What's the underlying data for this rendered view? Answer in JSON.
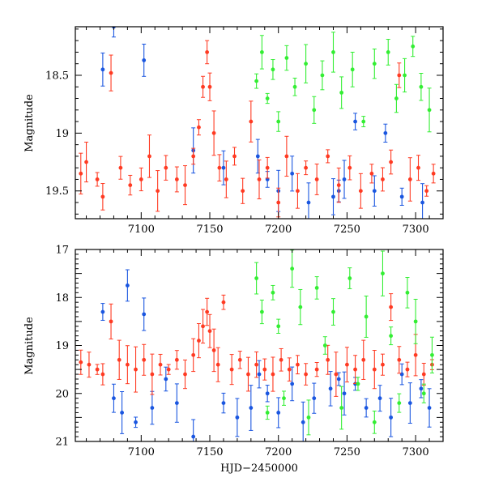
{
  "chart_data": [
    {
      "type": "scatter",
      "panel": "top",
      "xlabel": "",
      "ylabel": "Magnitude",
      "xlim": [
        7052,
        7320
      ],
      "ylim": [
        19.74,
        18.08
      ],
      "y_inverted": true,
      "x_ticks": [
        7100,
        7150,
        7200,
        7250,
        7300
      ],
      "x_tick_labels": [
        "7100",
        "7150",
        "7200",
        "7250",
        "7300"
      ],
      "y_ticks": [
        18.5,
        19,
        19.5
      ],
      "y_tick_labels": [
        "18.5",
        "19",
        "19.5"
      ],
      "series": [
        {
          "name": "blue",
          "color": "#1a56e0",
          "points": [
            [
              7072,
              18.45
            ],
            [
              7080,
              18.08
            ],
            [
              7102,
              18.37
            ],
            [
              7138,
              19.15
            ],
            [
              7160,
              19.3
            ],
            [
              7185,
              19.2
            ],
            [
              7192,
              19.4
            ],
            [
              7200,
              19.5
            ],
            [
              7210,
              19.35
            ],
            [
              7222,
              19.6
            ],
            [
              7240,
              19.55
            ],
            [
              7244,
              19.5
            ],
            [
              7248,
              19.4
            ],
            [
              7256,
              18.9
            ],
            [
              7270,
              19.5
            ],
            [
              7278,
              19.0
            ],
            [
              7290,
              19.55
            ],
            [
              7305,
              19.6
            ]
          ]
        },
        {
          "name": "red",
          "color": "#ff3a22",
          "points": [
            [
              7056,
              19.35
            ],
            [
              7060,
              19.25
            ],
            [
              7068,
              19.4
            ],
            [
              7072,
              19.55
            ],
            [
              7078,
              18.48
            ],
            [
              7085,
              19.3
            ],
            [
              7092,
              19.45
            ],
            [
              7100,
              19.4
            ],
            [
              7106,
              19.2
            ],
            [
              7112,
              19.5
            ],
            [
              7118,
              19.3
            ],
            [
              7126,
              19.4
            ],
            [
              7132,
              19.45
            ],
            [
              7138,
              19.2
            ],
            [
              7142,
              18.95
            ],
            [
              7145,
              18.6
            ],
            [
              7148,
              18.3
            ],
            [
              7150,
              18.6
            ],
            [
              7153,
              19.0
            ],
            [
              7157,
              19.3
            ],
            [
              7162,
              19.4
            ],
            [
              7168,
              19.2
            ],
            [
              7174,
              19.5
            ],
            [
              7180,
              18.9
            ],
            [
              7186,
              19.4
            ],
            [
              7192,
              19.3
            ],
            [
              7200,
              19.6
            ],
            [
              7206,
              19.2
            ],
            [
              7214,
              19.5
            ],
            [
              7220,
              19.3
            ],
            [
              7228,
              19.4
            ],
            [
              7236,
              19.2
            ],
            [
              7244,
              19.45
            ],
            [
              7252,
              19.3
            ],
            [
              7260,
              19.5
            ],
            [
              7268,
              19.35
            ],
            [
              7276,
              19.4
            ],
            [
              7282,
              19.25
            ],
            [
              7288,
              18.5
            ],
            [
              7296,
              19.4
            ],
            [
              7302,
              19.3
            ],
            [
              7308,
              19.5
            ],
            [
              7313,
              19.35
            ]
          ]
        },
        {
          "name": "green",
          "color": "#33ee33",
          "points": [
            [
              7184,
              18.55
            ],
            [
              7188,
              18.3
            ],
            [
              7192,
              18.7
            ],
            [
              7196,
              18.45
            ],
            [
              7200,
              18.9
            ],
            [
              7206,
              18.35
            ],
            [
              7212,
              18.6
            ],
            [
              7220,
              18.4
            ],
            [
              7226,
              18.8
            ],
            [
              7232,
              18.5
            ],
            [
              7240,
              18.3
            ],
            [
              7246,
              18.65
            ],
            [
              7254,
              18.45
            ],
            [
              7262,
              18.9
            ],
            [
              7270,
              18.4
            ],
            [
              7280,
              18.3
            ],
            [
              7286,
              18.7
            ],
            [
              7292,
              18.5
            ],
            [
              7298,
              18.25
            ],
            [
              7304,
              18.6
            ],
            [
              7310,
              18.8
            ]
          ]
        }
      ]
    },
    {
      "type": "scatter",
      "panel": "bottom",
      "xlabel": "HJD−2450000",
      "ylabel": "Magnitude",
      "xlim": [
        7052,
        7320
      ],
      "ylim": [
        21,
        17
      ],
      "y_inverted": true,
      "x_ticks": [
        7100,
        7150,
        7200,
        7250,
        7300
      ],
      "x_tick_labels": [
        "7100",
        "7150",
        "7200",
        "7250",
        "7300"
      ],
      "y_ticks": [
        17,
        18,
        19,
        20,
        21
      ],
      "y_tick_labels": [
        "17",
        "18",
        "19",
        "20",
        "21"
      ],
      "series": [
        {
          "name": "blue",
          "color": "#1a56e0",
          "points": [
            [
              7072,
              18.3
            ],
            [
              7080,
              20.1
            ],
            [
              7086,
              20.4
            ],
            [
              7090,
              17.75
            ],
            [
              7096,
              20.6
            ],
            [
              7102,
              18.35
            ],
            [
              7108,
              20.3
            ],
            [
              7118,
              19.7
            ],
            [
              7126,
              20.2
            ],
            [
              7138,
              20.9
            ],
            [
              7160,
              20.2
            ],
            [
              7170,
              20.5
            ],
            [
              7180,
              20.3
            ],
            [
              7186,
              19.6
            ],
            [
              7192,
              20.0
            ],
            [
              7200,
              20.4
            ],
            [
              7210,
              19.8
            ],
            [
              7218,
              20.6
            ],
            [
              7226,
              20.1
            ],
            [
              7238,
              19.9
            ],
            [
              7244,
              19.7
            ],
            [
              7248,
              20.0
            ],
            [
              7256,
              19.8
            ],
            [
              7264,
              20.3
            ],
            [
              7274,
              20.1
            ],
            [
              7282,
              20.5
            ],
            [
              7290,
              19.6
            ],
            [
              7296,
              20.2
            ],
            [
              7304,
              19.9
            ],
            [
              7310,
              20.3
            ]
          ]
        },
        {
          "name": "red",
          "color": "#ff3a22",
          "points": [
            [
              7056,
              19.35
            ],
            [
              7062,
              19.4
            ],
            [
              7068,
              19.5
            ],
            [
              7072,
              19.6
            ],
            [
              7078,
              18.5
            ],
            [
              7084,
              19.3
            ],
            [
              7090,
              19.4
            ],
            [
              7096,
              19.5
            ],
            [
              7102,
              19.3
            ],
            [
              7108,
              19.6
            ],
            [
              7114,
              19.4
            ],
            [
              7120,
              19.5
            ],
            [
              7126,
              19.3
            ],
            [
              7132,
              19.6
            ],
            [
              7138,
              19.2
            ],
            [
              7142,
              18.9
            ],
            [
              7145,
              18.6
            ],
            [
              7148,
              18.3
            ],
            [
              7150,
              18.7
            ],
            [
              7153,
              19.1
            ],
            [
              7156,
              19.4
            ],
            [
              7160,
              18.1
            ],
            [
              7166,
              19.5
            ],
            [
              7172,
              19.3
            ],
            [
              7178,
              19.6
            ],
            [
              7184,
              19.4
            ],
            [
              7190,
              19.5
            ],
            [
              7196,
              19.6
            ],
            [
              7202,
              19.3
            ],
            [
              7208,
              19.5
            ],
            [
              7214,
              19.4
            ],
            [
              7220,
              19.6
            ],
            [
              7228,
              19.5
            ],
            [
              7236,
              19.3
            ],
            [
              7242,
              19.6
            ],
            [
              7250,
              19.4
            ],
            [
              7256,
              19.5
            ],
            [
              7262,
              19.3
            ],
            [
              7270,
              19.5
            ],
            [
              7276,
              19.4
            ],
            [
              7282,
              18.2
            ],
            [
              7288,
              19.3
            ],
            [
              7294,
              19.5
            ],
            [
              7300,
              19.2
            ],
            [
              7306,
              19.6
            ],
            [
              7312,
              19.4
            ]
          ]
        },
        {
          "name": "green",
          "color": "#33ee33",
          "points": [
            [
              7184,
              17.6
            ],
            [
              7188,
              18.3
            ],
            [
              7192,
              20.4
            ],
            [
              7196,
              17.9
            ],
            [
              7200,
              18.6
            ],
            [
              7204,
              20.1
            ],
            [
              7210,
              17.4
            ],
            [
              7216,
              18.2
            ],
            [
              7222,
              20.5
            ],
            [
              7228,
              17.8
            ],
            [
              7234,
              19.0
            ],
            [
              7240,
              18.3
            ],
            [
              7246,
              20.3
            ],
            [
              7252,
              17.6
            ],
            [
              7258,
              19.8
            ],
            [
              7264,
              18.4
            ],
            [
              7270,
              20.6
            ],
            [
              7276,
              17.5
            ],
            [
              7282,
              18.8
            ],
            [
              7288,
              20.2
            ],
            [
              7294,
              17.9
            ],
            [
              7300,
              18.5
            ],
            [
              7306,
              20.0
            ],
            [
              7312,
              19.2
            ]
          ]
        }
      ]
    }
  ]
}
